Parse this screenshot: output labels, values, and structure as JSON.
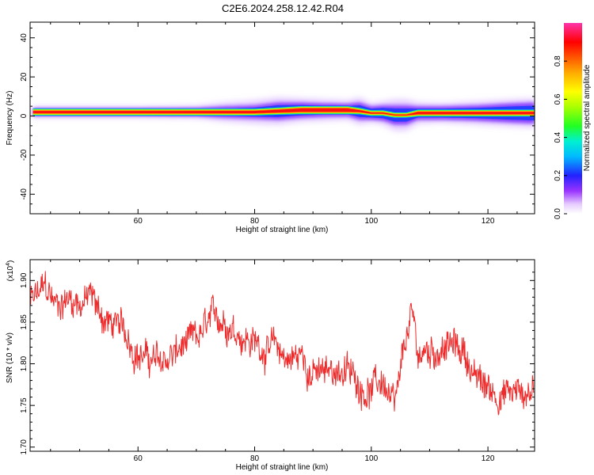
{
  "title": "C2E6.2024.258.12.42.R04",
  "colors": {
    "snr_line": "#ee2a2a",
    "axis": "#000000"
  },
  "chart_data": [
    {
      "type": "heatmap",
      "xlabel": "Height of straight line (km)",
      "ylabel": "Frequency (Hz)",
      "xlim": [
        41.5,
        128
      ],
      "ylim": [
        -50,
        48
      ],
      "x_ticks": [
        60,
        80,
        100,
        120
      ],
      "y_ticks": [
        -40,
        -20,
        0,
        20,
        40
      ],
      "colorbar": {
        "label": "Normalized spectral amplitude",
        "range": [
          0,
          1
        ],
        "ticks": [
          "0.0",
          "0.2",
          "0.4",
          "0.6",
          "0.8"
        ],
        "tick_values": [
          0,
          0.2,
          0.4,
          0.6,
          0.8
        ]
      },
      "ridge": {
        "description_free": true,
        "x": [
          42,
          50,
          60,
          70,
          75,
          80,
          84,
          88,
          92,
          96,
          98,
          100,
          102,
          104,
          106,
          108,
          112,
          118,
          124,
          128
        ],
        "center_freq": [
          2,
          2,
          2,
          2,
          2,
          2,
          2.5,
          3,
          3,
          3,
          2.5,
          1.5,
          1.5,
          0.5,
          0.5,
          1.5,
          1.5,
          1.5,
          1.5,
          1.5
        ],
        "core_halfwidth": [
          0.6,
          0.6,
          0.6,
          0.6,
          0.6,
          0.6,
          0.7,
          0.9,
          0.9,
          0.9,
          0.5,
          0.3,
          0.3,
          0.2,
          0.2,
          0.6,
          0.6,
          0.6,
          0.6,
          0.6
        ],
        "spread_halfwidth": [
          1.5,
          1.5,
          1.5,
          1.7,
          2.5,
          3.0,
          4.0,
          3.5,
          3.0,
          2.8,
          4.0,
          3.0,
          3.5,
          4.5,
          4.5,
          3.0,
          3.0,
          3.5,
          4.5,
          5.0
        ],
        "glow_halfwidth": [
          1.8,
          1.8,
          1.8,
          2.2,
          4.0,
          5.0,
          6.0,
          5.0,
          4.5,
          4.0,
          6.0,
          4.0,
          5.0,
          7.0,
          7.0,
          4.5,
          4.0,
          5.0,
          6.0,
          6.5
        ]
      }
    },
    {
      "type": "line",
      "xlabel": "Height of straight line (km)",
      "ylabel": "SNR (10 * v/v)",
      "scale_label": "(x10",
      "scale_exponent": "4",
      "scale_suffix": ")",
      "xlim": [
        41.5,
        128
      ],
      "ylim": [
        1.695,
        1.925
      ],
      "x_ticks": [
        60,
        80,
        100,
        120
      ],
      "y_ticks": [
        "1.70",
        "1.75",
        "1.80",
        "1.85",
        "1.90"
      ],
      "y_tick_values": [
        1.7,
        1.75,
        1.8,
        1.85,
        1.9
      ],
      "series": [
        {
          "x": [
            42,
            44,
            46,
            48,
            50,
            52,
            54,
            56,
            58,
            60,
            62,
            64,
            66,
            68,
            70,
            72,
            74,
            76,
            78,
            80,
            82,
            84,
            86,
            88,
            90,
            92,
            94,
            96,
            98,
            100,
            102,
            104,
            105,
            106,
            107,
            108,
            110,
            112,
            114,
            116,
            118,
            120,
            122,
            124,
            126,
            128
          ],
          "values": [
            1.875,
            1.89,
            1.87,
            1.88,
            1.875,
            1.88,
            1.855,
            1.845,
            1.835,
            1.815,
            1.805,
            1.8,
            1.81,
            1.82,
            1.825,
            1.845,
            1.855,
            1.85,
            1.835,
            1.825,
            1.82,
            1.815,
            1.805,
            1.81,
            1.79,
            1.785,
            1.795,
            1.79,
            1.775,
            1.77,
            1.78,
            1.74,
            1.78,
            1.83,
            1.855,
            1.81,
            1.815,
            1.82,
            1.82,
            1.815,
            1.78,
            1.77,
            1.765,
            1.765,
            1.765,
            1.77
          ]
        }
      ]
    }
  ]
}
